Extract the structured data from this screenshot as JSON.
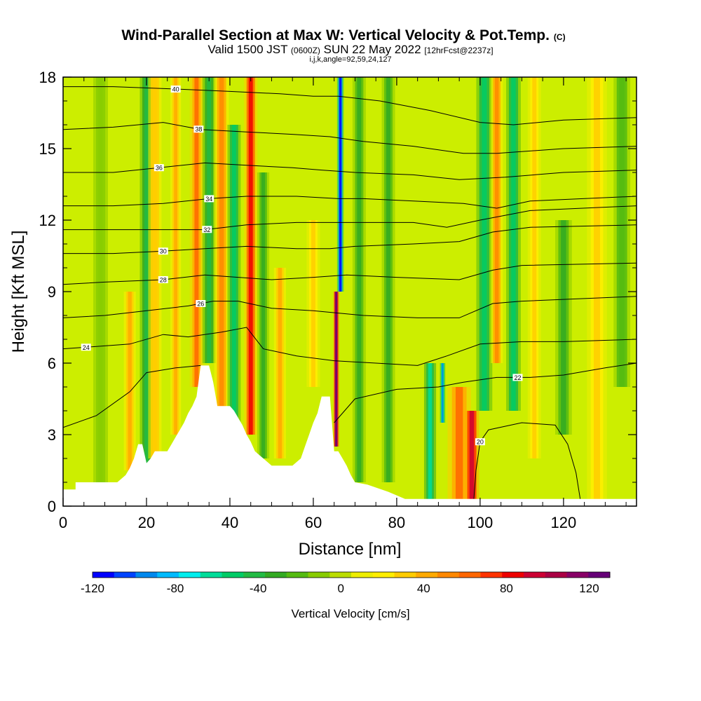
{
  "chart_data": {
    "type": "heatmap",
    "title": "Wind-Parallel Section at Max W: Vertical Velocity & Pot.Temp.",
    "title_units": "(C)",
    "subtitle": {
      "valid_prefix": "Valid 1500 JST",
      "utc": "(0600Z)",
      "date": "SUN 22 May 2022",
      "forecast": "[12hrFcst@2237z]"
    },
    "subtitle2": "i,j,k,angle=92,59,24,127",
    "xlabel": "Distance [nm]",
    "ylabel": "Height [Kft MSL]",
    "xlim": [
      0,
      137.5
    ],
    "ylim": [
      0,
      18
    ],
    "x_ticks": [
      "0",
      "20",
      "40",
      "60",
      "80",
      "100",
      "120"
    ],
    "y_ticks": [
      "0",
      "3",
      "6",
      "9",
      "12",
      "15",
      "18"
    ],
    "colorbar": {
      "label": "Vertical Velocity [cm/s]",
      "range": [
        -120,
        130
      ],
      "ticks": [
        "-120",
        "-80",
        "-40",
        "0",
        "40",
        "80",
        "120"
      ],
      "colors": [
        "#0000ff",
        "#0044ff",
        "#0088ee",
        "#00bbff",
        "#00eeee",
        "#00dd99",
        "#00cc66",
        "#22bb44",
        "#33aa22",
        "#55bb11",
        "#88cc00",
        "#bbdd00",
        "#eeee00",
        "#ffee00",
        "#ffcc00",
        "#ffaa00",
        "#ff8800",
        "#ff6600",
        "#ff3300",
        "#ee0000",
        "#cc0033",
        "#aa0044",
        "#880066",
        "#660077"
      ]
    },
    "terrain_profile": {
      "x": [
        0,
        3,
        3,
        13,
        15,
        16,
        17,
        18,
        19,
        20,
        21,
        22,
        25,
        26,
        27,
        28,
        29,
        30,
        31,
        32,
        33,
        35,
        36,
        37,
        40,
        41,
        42,
        43,
        44,
        45,
        46,
        48,
        50,
        52,
        55,
        57,
        58,
        59,
        60,
        61,
        62,
        64,
        65,
        66,
        67,
        68,
        69,
        70,
        73,
        78,
        82,
        82,
        137.5
      ],
      "y": [
        0.7,
        0.7,
        1.0,
        1.0,
        1.3,
        1.6,
        2.0,
        2.6,
        2.6,
        1.8,
        2.0,
        2.3,
        2.3,
        2.6,
        2.9,
        3.2,
        3.5,
        3.9,
        4.2,
        4.6,
        5.9,
        5.9,
        5.2,
        4.2,
        4.2,
        4.0,
        3.7,
        3.4,
        3.0,
        2.7,
        2.3,
        2.0,
        1.7,
        1.7,
        1.7,
        2.0,
        2.5,
        3.0,
        3.5,
        3.9,
        4.6,
        4.6,
        2.3,
        2.3,
        2.0,
        1.7,
        1.3,
        1.0,
        0.9,
        0.6,
        0.3,
        0.3,
        0.3
      ]
    },
    "vertical_velocity_features": [
      {
        "x": 9,
        "width": 2.2,
        "y_range": [
          0.5,
          18
        ],
        "value": -15
      },
      {
        "x": 16,
        "width": 1.8,
        "y_range": [
          1.5,
          9
        ],
        "value": 45
      },
      {
        "x": 20,
        "width": 2.0,
        "y_range": [
          1.8,
          18
        ],
        "value": -40
      },
      {
        "x": 22,
        "width": 2.0,
        "y_range": [
          2.0,
          18
        ],
        "value": 35
      },
      {
        "x": 27,
        "width": 1.6,
        "y_range": [
          3,
          18
        ],
        "value": 40
      },
      {
        "x": 32,
        "width": 2.0,
        "y_range": [
          5,
          18
        ],
        "value": 60
      },
      {
        "x": 35,
        "width": 2.0,
        "y_range": [
          6,
          18
        ],
        "value": -45
      },
      {
        "x": 38,
        "width": 2.2,
        "y_range": [
          4,
          18
        ],
        "value": 55
      },
      {
        "x": 41,
        "width": 2.0,
        "y_range": [
          3,
          16
        ],
        "value": -55
      },
      {
        "x": 45,
        "width": 2.0,
        "y_range": [
          3,
          18
        ],
        "value": 80
      },
      {
        "x": 48,
        "width": 1.8,
        "y_range": [
          2,
          14
        ],
        "value": -35
      },
      {
        "x": 52,
        "width": 1.8,
        "y_range": [
          2,
          10
        ],
        "value": 40
      },
      {
        "x": 60,
        "width": 2.0,
        "y_range": [
          5,
          12
        ],
        "value": 30
      },
      {
        "x": 65.5,
        "width": 0.9,
        "y_range": [
          2.5,
          9
        ],
        "value": 120
      },
      {
        "x": 66.5,
        "width": 1.0,
        "y_range": [
          9,
          18
        ],
        "value": -120
      },
      {
        "x": 71,
        "width": 2.0,
        "y_range": [
          1,
          18
        ],
        "value": -30
      },
      {
        "x": 78,
        "width": 2.0,
        "y_range": [
          1,
          18
        ],
        "value": -30
      },
      {
        "x": 88,
        "width": 1.8,
        "y_range": [
          0.3,
          6
        ],
        "value": -60
      },
      {
        "x": 91,
        "width": 0.8,
        "y_range": [
          3.5,
          6
        ],
        "value": -90
      },
      {
        "x": 95,
        "width": 3.5,
        "y_range": [
          0.3,
          5
        ],
        "value": 60
      },
      {
        "x": 98,
        "width": 2.2,
        "y_range": [
          0.3,
          4
        ],
        "value": 90
      },
      {
        "x": 101,
        "width": 2.4,
        "y_range": [
          4,
          18
        ],
        "value": -50
      },
      {
        "x": 104,
        "width": 1.8,
        "y_range": [
          6,
          18
        ],
        "value": 55
      },
      {
        "x": 108,
        "width": 2.2,
        "y_range": [
          4,
          18
        ],
        "value": -50
      },
      {
        "x": 113,
        "width": 2.0,
        "y_range": [
          2,
          18
        ],
        "value": 30
      },
      {
        "x": 120,
        "width": 2.5,
        "y_range": [
          3,
          12
        ],
        "value": -30
      },
      {
        "x": 128,
        "width": 3.0,
        "y_range": [
          0.3,
          18
        ],
        "value": 30
      },
      {
        "x": 134,
        "width": 2.5,
        "y_range": [
          5,
          18
        ],
        "value": -25
      }
    ],
    "potential_temperature_contours": [
      {
        "value": 20,
        "label": "20",
        "label_x": 100,
        "points": [
          [
            98.5,
            0.3
          ],
          [
            99,
            1.5
          ],
          [
            100,
            2.7
          ],
          [
            102,
            3.2
          ],
          [
            110,
            3.5
          ],
          [
            118,
            3.4
          ],
          [
            121,
            2.6
          ],
          [
            123,
            1.4
          ],
          [
            124,
            0.3
          ]
        ]
      },
      {
        "value": 22,
        "label": "22",
        "label_x": 109,
        "points": [
          [
            0,
            3.3
          ],
          [
            8,
            3.8
          ],
          [
            16,
            4.8
          ],
          [
            20,
            5.6
          ],
          [
            27,
            5.8
          ],
          [
            33,
            5.9
          ]
        ],
        "points2": [
          [
            65,
            3.5
          ],
          [
            70,
            4.5
          ],
          [
            80,
            4.9
          ],
          [
            90,
            5.0
          ],
          [
            96,
            5.2
          ],
          [
            104,
            5.4
          ],
          [
            112,
            5.4
          ],
          [
            120,
            5.5
          ],
          [
            130,
            5.8
          ],
          [
            137.5,
            6.0
          ]
        ]
      },
      {
        "value": 24,
        "label": "24",
        "label_x": 5.5,
        "points": [
          [
            0,
            6.6
          ],
          [
            8,
            6.7
          ],
          [
            16,
            6.8
          ],
          [
            24,
            7.2
          ],
          [
            30,
            7.1
          ],
          [
            38,
            7.3
          ],
          [
            44,
            7.5
          ],
          [
            48,
            6.6
          ],
          [
            56,
            6.3
          ],
          [
            65,
            6.1
          ],
          [
            75,
            6.0
          ],
          [
            85,
            5.9
          ],
          [
            92,
            6.3
          ],
          [
            100,
            6.8
          ],
          [
            110,
            6.9
          ],
          [
            120,
            6.9
          ],
          [
            137.5,
            7.0
          ]
        ]
      },
      {
        "value": 26,
        "label": "26",
        "label_x": 33,
        "points": [
          [
            0,
            7.9
          ],
          [
            10,
            8.0
          ],
          [
            20,
            8.2
          ],
          [
            30,
            8.4
          ],
          [
            36,
            8.6
          ],
          [
            42,
            8.6
          ],
          [
            50,
            8.3
          ],
          [
            60,
            8.2
          ],
          [
            66,
            8.1
          ],
          [
            72,
            8.0
          ],
          [
            85,
            7.9
          ],
          [
            95,
            7.9
          ],
          [
            103,
            8.5
          ],
          [
            110,
            8.6
          ],
          [
            137.5,
            8.8
          ]
        ]
      },
      {
        "value": 28,
        "label": "28",
        "label_x": 24,
        "points": [
          [
            0,
            9.3
          ],
          [
            10,
            9.4
          ],
          [
            24,
            9.5
          ],
          [
            34,
            9.7
          ],
          [
            42,
            9.6
          ],
          [
            50,
            9.5
          ],
          [
            60,
            9.6
          ],
          [
            68,
            9.7
          ],
          [
            80,
            9.6
          ],
          [
            95,
            9.5
          ],
          [
            103,
            9.9
          ],
          [
            110,
            10.1
          ],
          [
            137.5,
            10.2
          ]
        ]
      },
      {
        "value": 30,
        "label": "30",
        "label_x": 24,
        "points": [
          [
            0,
            10.6
          ],
          [
            12,
            10.6
          ],
          [
            24,
            10.7
          ],
          [
            34,
            10.8
          ],
          [
            44,
            10.9
          ],
          [
            56,
            10.8
          ],
          [
            64,
            10.8
          ],
          [
            70,
            10.9
          ],
          [
            84,
            11.0
          ],
          [
            95,
            11.1
          ],
          [
            103,
            11.5
          ],
          [
            112,
            11.7
          ],
          [
            137.5,
            11.8
          ]
        ]
      },
      {
        "value": 32,
        "label": "32",
        "label_x": 34.5,
        "points": [
          [
            0,
            11.6
          ],
          [
            12,
            11.6
          ],
          [
            24,
            11.6
          ],
          [
            34,
            11.6
          ],
          [
            44,
            11.8
          ],
          [
            56,
            11.9
          ],
          [
            64,
            11.9
          ],
          [
            72,
            11.9
          ],
          [
            84,
            11.9
          ],
          [
            92,
            11.7
          ],
          [
            100,
            12.0
          ],
          [
            112,
            12.4
          ],
          [
            137.5,
            12.6
          ]
        ]
      },
      {
        "value": 34,
        "label": "34",
        "label_x": 35,
        "points": [
          [
            0,
            12.6
          ],
          [
            12,
            12.6
          ],
          [
            24,
            12.7
          ],
          [
            35,
            12.9
          ],
          [
            44,
            13.0
          ],
          [
            56,
            13.0
          ],
          [
            66,
            12.9
          ],
          [
            72,
            12.9
          ],
          [
            84,
            12.8
          ],
          [
            96,
            12.7
          ],
          [
            104,
            12.5
          ],
          [
            112,
            12.8
          ],
          [
            137.5,
            13.0
          ]
        ]
      },
      {
        "value": 36,
        "label": "36",
        "label_x": 23,
        "points": [
          [
            0,
            14.0
          ],
          [
            12,
            14.0
          ],
          [
            23,
            14.2
          ],
          [
            34,
            14.4
          ],
          [
            44,
            14.3
          ],
          [
            55,
            14.2
          ],
          [
            62,
            14.1
          ],
          [
            70,
            14.0
          ],
          [
            84,
            13.9
          ],
          [
            95,
            13.7
          ],
          [
            106,
            13.8
          ],
          [
            120,
            14.0
          ],
          [
            137.5,
            14.1
          ]
        ]
      },
      {
        "value": 38,
        "label": "38",
        "label_x": 32.5,
        "points": [
          [
            0,
            15.8
          ],
          [
            12,
            15.9
          ],
          [
            24,
            16.1
          ],
          [
            33,
            15.8
          ],
          [
            44,
            15.7
          ],
          [
            55,
            15.6
          ],
          [
            64,
            15.5
          ],
          [
            72,
            15.3
          ],
          [
            84,
            15.1
          ],
          [
            96,
            14.8
          ],
          [
            104,
            14.8
          ],
          [
            120,
            15.0
          ],
          [
            137.5,
            15.1
          ]
        ]
      },
      {
        "value": 40,
        "label": "40",
        "label_x": 27,
        "points": [
          [
            0,
            17.6
          ],
          [
            12,
            17.6
          ],
          [
            27,
            17.5
          ],
          [
            40,
            17.4
          ],
          [
            52,
            17.3
          ],
          [
            60,
            17.2
          ],
          [
            66,
            17.2
          ],
          [
            76,
            17.0
          ],
          [
            88,
            16.6
          ],
          [
            100,
            16.1
          ],
          [
            108,
            16.0
          ],
          [
            120,
            16.2
          ],
          [
            137.5,
            16.3
          ]
        ]
      }
    ]
  }
}
